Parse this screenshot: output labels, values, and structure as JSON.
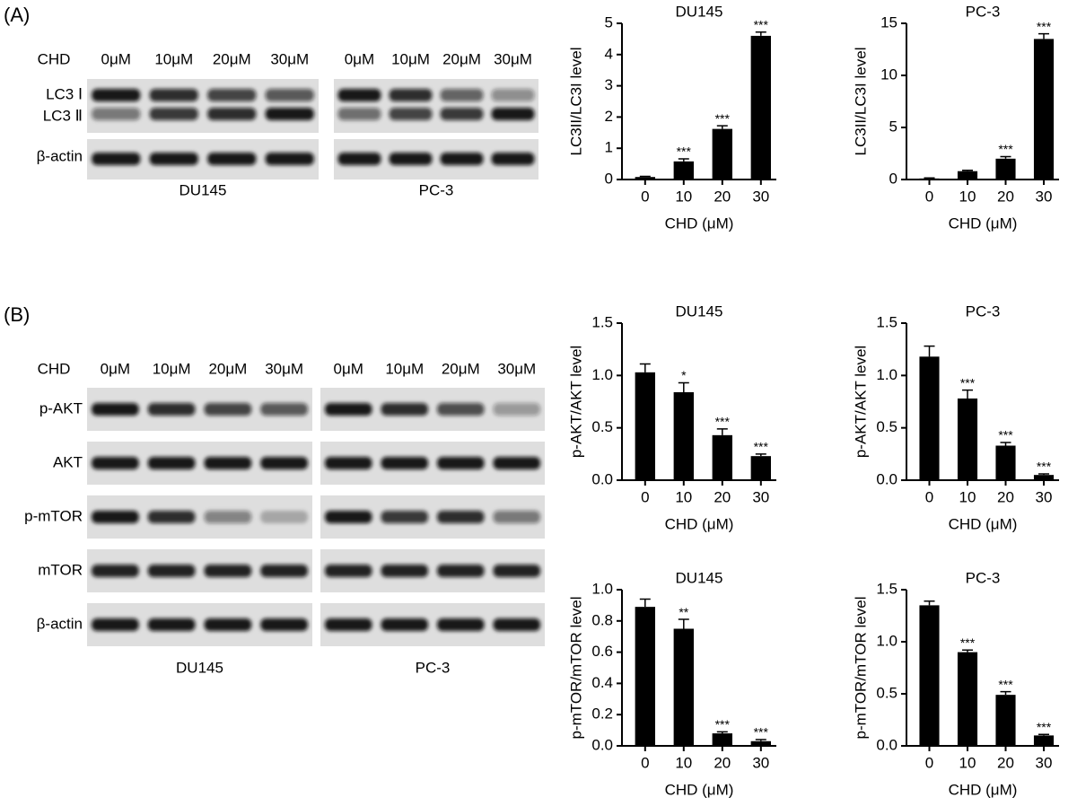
{
  "figure": {
    "panel_a": {
      "label": "(A)",
      "treatment": "CHD",
      "lanes_left": [
        "0μM",
        "10μM",
        "20μM",
        "30μM"
      ],
      "lanes_right": [
        "0μM",
        "10μM",
        "20μM",
        "30μM"
      ],
      "rows": [
        "LC3 Ⅰ",
        "LC3 Ⅱ",
        "β-actin"
      ],
      "cell_lines": [
        "DU145",
        "PC-3"
      ]
    },
    "panel_b": {
      "label": "(B)",
      "treatment": "CHD",
      "lanes_left": [
        "0μM",
        "10μM",
        "20μM",
        "30μM"
      ],
      "lanes_right": [
        "0μM",
        "10μM",
        "20μM",
        "30μM"
      ],
      "rows": [
        "p-AKT",
        "AKT",
        "p-mTOR",
        "mTOR",
        "β-actin"
      ],
      "cell_lines": [
        "DU145",
        "PC-3"
      ]
    }
  },
  "chart_data": [
    {
      "type": "bar",
      "title": "DU145",
      "x_label": "CHD (μM)",
      "y_label": "LC3II/LC3I level",
      "categories": [
        "0",
        "10",
        "20",
        "30"
      ],
      "values": [
        0.08,
        0.58,
        1.62,
        4.6
      ],
      "errors": [
        0.02,
        0.08,
        0.1,
        0.12
      ],
      "annotations": [
        null,
        "***",
        "***",
        "***"
      ],
      "color": "#000000",
      "ylim": [
        0,
        5
      ],
      "yticks": [
        0,
        1,
        2,
        3,
        4,
        5
      ]
    },
    {
      "type": "bar",
      "title": "PC-3",
      "x_label": "CHD (μM)",
      "y_label": "LC3II/LC3I level",
      "categories": [
        "0",
        "10",
        "20",
        "30"
      ],
      "values": [
        0.1,
        0.8,
        2.0,
        13.5
      ],
      "errors": [
        0.05,
        0.08,
        0.2,
        0.5
      ],
      "annotations": [
        null,
        null,
        "***",
        "***"
      ],
      "color": "#000000",
      "ylim": [
        0,
        15
      ],
      "yticks": [
        0,
        5,
        10,
        15
      ]
    },
    {
      "type": "bar",
      "title": "DU145",
      "x_label": "CHD (μM)",
      "y_label": "p-AKT/AKT level",
      "categories": [
        "0",
        "10",
        "20",
        "30"
      ],
      "values": [
        1.03,
        0.84,
        0.43,
        0.23
      ],
      "errors": [
        0.08,
        0.09,
        0.06,
        0.02
      ],
      "annotations": [
        null,
        "*",
        "***",
        "***"
      ],
      "color": "#000000",
      "ylim": [
        0,
        1.5
      ],
      "yticks": [
        {
          "value": 0,
          "label": "0.0"
        },
        0.5,
        {
          "value": 1,
          "label": "1.0"
        },
        1.5
      ]
    },
    {
      "type": "bar",
      "title": "PC-3",
      "x_label": "CHD (μM)",
      "y_label": "p-AKT/AKT level",
      "categories": [
        "0",
        "10",
        "20",
        "30"
      ],
      "values": [
        1.18,
        0.78,
        0.33,
        0.05
      ],
      "errors": [
        0.1,
        0.08,
        0.03,
        0.01
      ],
      "annotations": [
        null,
        "***",
        "***",
        "***"
      ],
      "color": "#000000",
      "ylim": [
        0,
        1.5
      ],
      "yticks": [
        {
          "value": 0,
          "label": "0.0"
        },
        0.5,
        {
          "value": 1,
          "label": "1.0"
        },
        1.5
      ]
    },
    {
      "type": "bar",
      "title": "DU145",
      "x_label": "CHD (μM)",
      "y_label": "p-mTOR/mTOR level",
      "categories": [
        "0",
        "10",
        "20",
        "30"
      ],
      "values": [
        0.89,
        0.75,
        0.08,
        0.03
      ],
      "errors": [
        0.05,
        0.06,
        0.01,
        0.01
      ],
      "annotations": [
        null,
        "**",
        "***",
        "***"
      ],
      "color": "#000000",
      "ylim": [
        0,
        1.0
      ],
      "yticks": [
        {
          "value": 0,
          "label": "0.0"
        },
        0.2,
        0.4,
        0.6,
        0.8,
        {
          "value": 1,
          "label": "1.0"
        }
      ]
    },
    {
      "type": "bar",
      "title": "PC-3",
      "x_label": "CHD (μM)",
      "y_label": "p-mTOR/mTOR level",
      "categories": [
        "0",
        "10",
        "20",
        "30"
      ],
      "values": [
        1.35,
        0.9,
        0.49,
        0.1
      ],
      "errors": [
        0.04,
        0.02,
        0.03,
        0.01
      ],
      "annotations": [
        null,
        "***",
        "***",
        "***"
      ],
      "color": "#000000",
      "ylim": [
        0,
        1.5
      ],
      "yticks": [
        {
          "value": 0,
          "label": "0.0"
        },
        0.5,
        {
          "value": 1,
          "label": "1.0"
        },
        1.5
      ]
    }
  ]
}
